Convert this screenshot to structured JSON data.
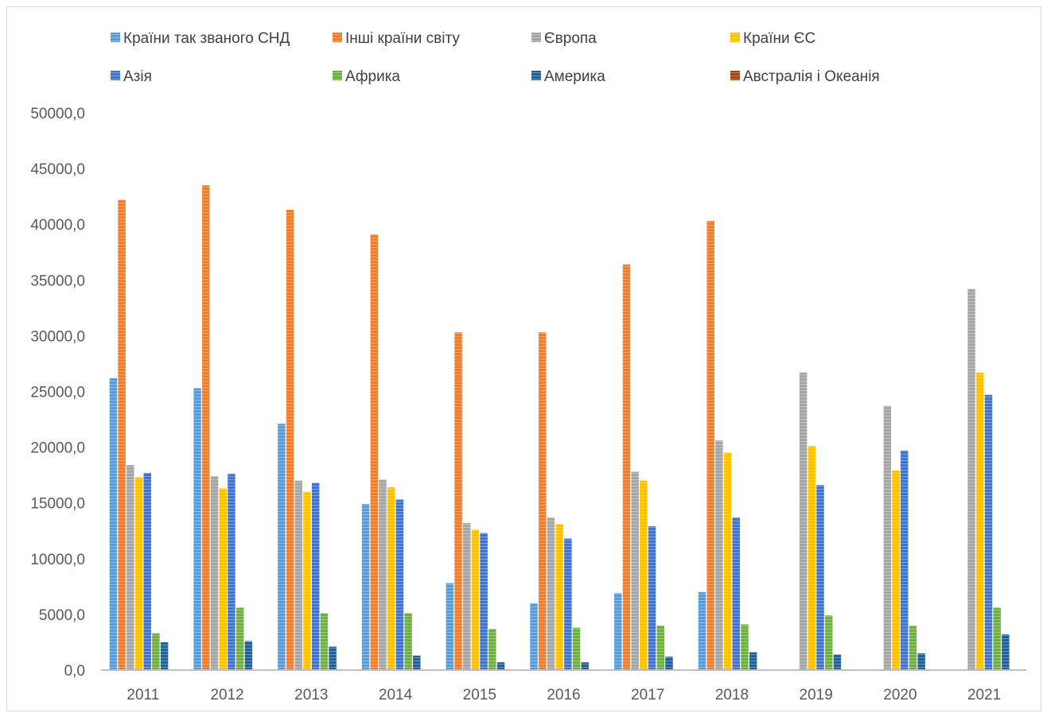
{
  "chart_data": {
    "type": "bar",
    "title": "",
    "xlabel": "",
    "ylabel": "",
    "ylim": [
      0,
      50000
    ],
    "y_ticks": [
      "0,0",
      "5000,0",
      "10000,0",
      "15000,0",
      "20000,0",
      "25000,0",
      "30000,0",
      "35000,0",
      "40000,0",
      "45000,0",
      "50000,0"
    ],
    "grid": false,
    "legend_position": "top",
    "bar_pattern": "horizontal-stripes",
    "categories": [
      "2011",
      "2012",
      "2013",
      "2014",
      "2015",
      "2016",
      "2017",
      "2018",
      "2019",
      "2020",
      "2021"
    ],
    "series": [
      {
        "name": "Країни так званого СНД",
        "color": "#5b9bd5",
        "values": [
          26200,
          25300,
          22100,
          14900,
          7800,
          6000,
          6900,
          7000,
          null,
          null,
          null
        ]
      },
      {
        "name": "Інші країни світу",
        "color": "#ed7d31",
        "values": [
          42200,
          43500,
          41300,
          39100,
          30300,
          30300,
          36400,
          40300,
          null,
          null,
          null
        ]
      },
      {
        "name": "Європа",
        "color": "#a5a5a5",
        "values": [
          18400,
          17400,
          17000,
          17100,
          13200,
          13700,
          17800,
          20600,
          26700,
          23700,
          34200
        ]
      },
      {
        "name": "Країни ЄС",
        "color": "#ffc000",
        "values": [
          17300,
          16300,
          16000,
          16400,
          12600,
          13100,
          17000,
          19500,
          20100,
          17900,
          26700
        ]
      },
      {
        "name": "Азія",
        "color": "#4472c4",
        "values": [
          17700,
          17600,
          16800,
          15300,
          12300,
          11800,
          12900,
          13700,
          16600,
          19700,
          24700
        ]
      },
      {
        "name": "Африка",
        "color": "#70ad47",
        "values": [
          3300,
          5600,
          5100,
          5100,
          3700,
          3800,
          4000,
          4100,
          4900,
          4000,
          5600
        ]
      },
      {
        "name": "Америка",
        "color": "#255e91",
        "values": [
          2500,
          2600,
          2100,
          1300,
          700,
          700,
          1200,
          1600,
          1400,
          1500,
          3200
        ]
      },
      {
        "name": "Австралія і Океанія",
        "color": "#9e480e",
        "values": [
          0,
          0,
          0,
          0,
          0,
          0,
          0,
          0,
          0,
          0,
          0
        ]
      }
    ]
  }
}
